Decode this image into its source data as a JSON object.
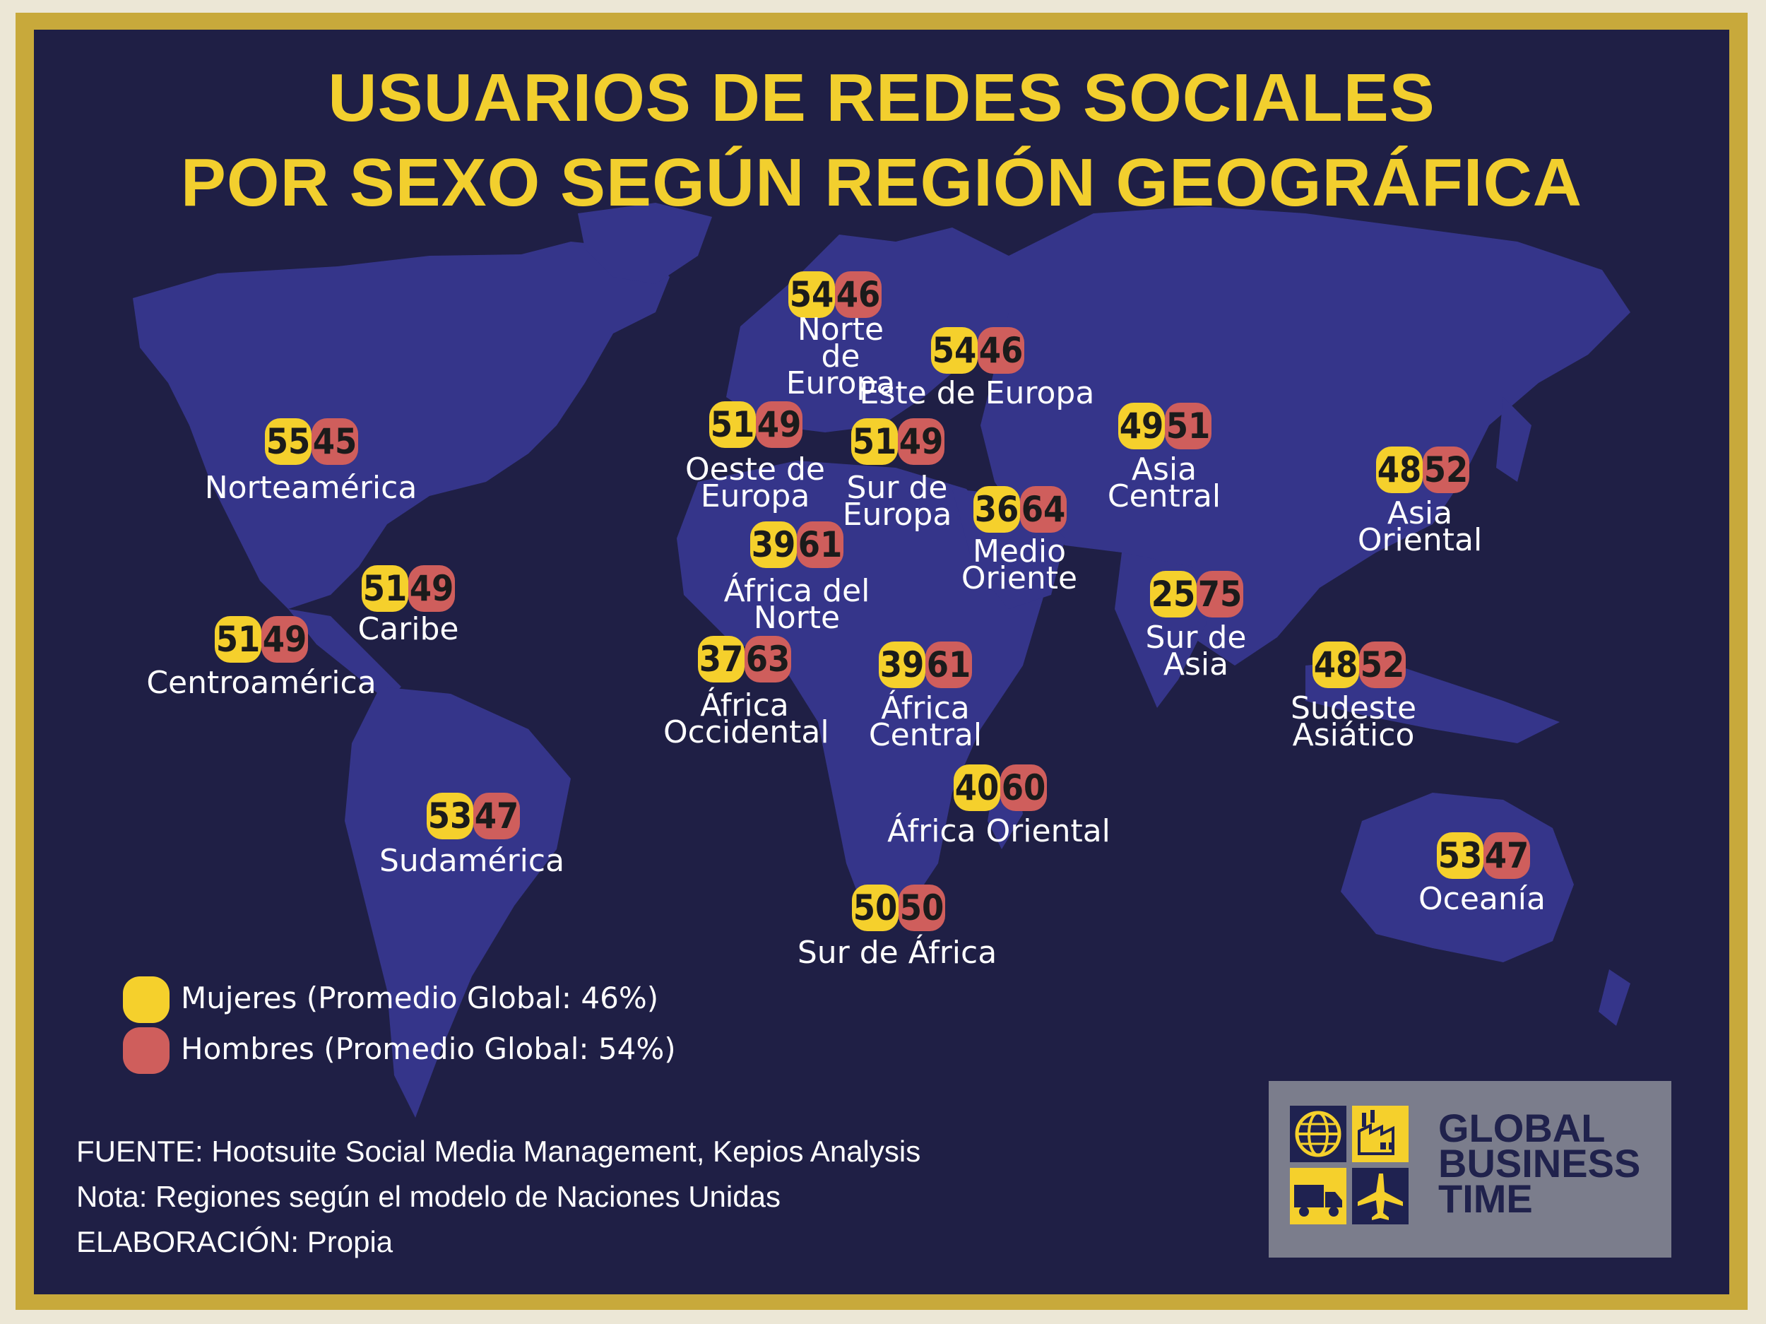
{
  "title": {
    "line1": "USUARIOS DE REDES SOCIALES",
    "line2": "POR SEXO SEGÚN REGIÓN GEOGRÁFICA"
  },
  "colors": {
    "women": "#f5d02c",
    "men": "#cf5e5c",
    "background": "#1f1f45",
    "land": "#35358a",
    "frame": "#c8a93b",
    "title": "#f2cf2e"
  },
  "regions": [
    {
      "name": "Norte de Europa",
      "women": "54",
      "men": "46"
    },
    {
      "name": "Este de Europa",
      "women": "54",
      "men": "46"
    },
    {
      "name": "Norteamérica",
      "women": "55",
      "men": "45"
    },
    {
      "name": "Oeste de Europa",
      "women": "51",
      "men": "49"
    },
    {
      "name": "Sur de Europa",
      "women": "51",
      "men": "49"
    },
    {
      "name": "Asia Central",
      "women": "49",
      "men": "51"
    },
    {
      "name": "Asia Oriental",
      "women": "48",
      "men": "52"
    },
    {
      "name": "Medio Oriente",
      "women": "36",
      "men": "64"
    },
    {
      "name": "África del Norte",
      "women": "39",
      "men": "61"
    },
    {
      "name": "Caribe",
      "women": "51",
      "men": "49"
    },
    {
      "name": "Sur de Asia",
      "women": "25",
      "men": "75"
    },
    {
      "name": "Centroamérica",
      "women": "51",
      "men": "49"
    },
    {
      "name": "África Occidental",
      "women": "37",
      "men": "63"
    },
    {
      "name": "África Central",
      "women": "39",
      "men": "61"
    },
    {
      "name": "Sudeste Asiático",
      "women": "48",
      "men": "52"
    },
    {
      "name": "África Oriental",
      "women": "40",
      "men": "60"
    },
    {
      "name": "Sudamérica",
      "women": "53",
      "men": "47"
    },
    {
      "name": "Oceanía",
      "women": "53",
      "men": "47"
    },
    {
      "name": "Sur de África",
      "women": "50",
      "men": "50"
    }
  ],
  "legend": {
    "women": "Mujeres (Promedio Global: 46%)",
    "men": "Hombres (Promedio Global: 54%)"
  },
  "notes": {
    "source": "FUENTE: Hootsuite Social Media Management, Kepios Analysis",
    "note": "Nota: Regiones según el modelo de Naciones Unidas",
    "credit": "ELABORACIÓN: Propia"
  },
  "logo": {
    "line1": "GLOBAL",
    "line2": "BUSINESS",
    "line3": "TIME",
    "icons": [
      "globe-icon",
      "factory-icon",
      "truck-icon",
      "airplane-icon"
    ]
  }
}
